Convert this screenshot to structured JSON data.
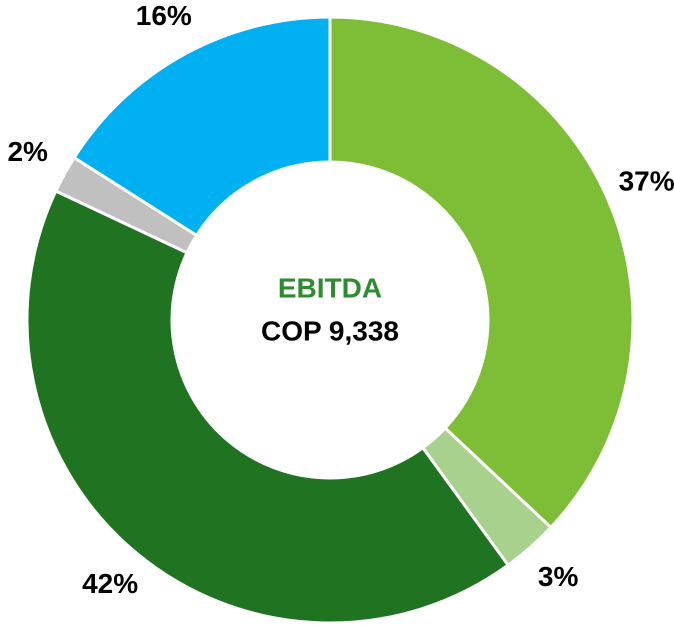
{
  "chart_data": {
    "type": "donut",
    "center_title": "EBITDA",
    "center_label": "COP 9,338",
    "values": [
      37,
      3,
      42,
      2,
      16
    ],
    "value_labels": [
      "37%",
      "3%",
      "42%",
      "2%",
      "16%"
    ],
    "colors": [
      "#7dbe36",
      "#a9d18e",
      "#1f7321",
      "#c0c0c0",
      "#00b0f0"
    ],
    "center_title_color": "#2e8b2e"
  }
}
